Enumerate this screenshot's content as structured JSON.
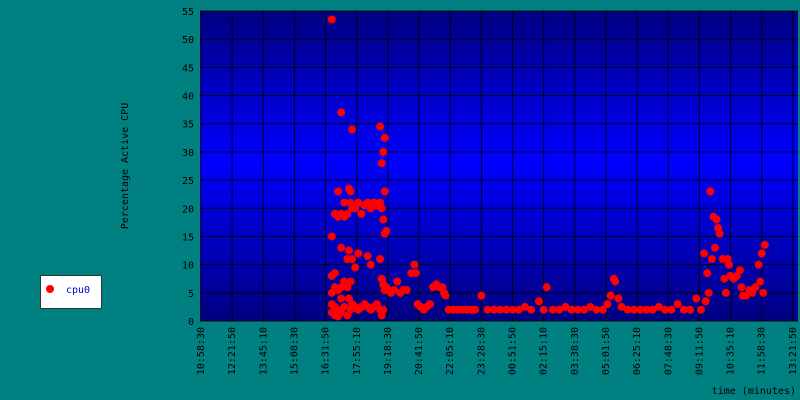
{
  "chart_data": {
    "type": "scatter",
    "title": "",
    "xlabel": "time (minutes)",
    "ylabel": "Percentage Active CPU",
    "ylim": [
      0,
      55
    ],
    "yticks": [
      0,
      5,
      10,
      15,
      20,
      25,
      30,
      35,
      40,
      45,
      50,
      55
    ],
    "xticks": [
      "10:58:30",
      "12:21:50",
      "13:45:10",
      "15:08:30",
      "16:31:50",
      "17:55:10",
      "19:18:30",
      "20:41:50",
      "22:05:10",
      "23:28:30",
      "00:51:50",
      "02:15:10",
      "03:38:30",
      "05:01:50",
      "06:25:10",
      "07:48:30",
      "09:11:50",
      "10:35:10",
      "11:58:30",
      "13:21:50"
    ],
    "grid": true,
    "legend": "left",
    "series": [
      {
        "name": "cpu0",
        "color": "#ff0000",
        "points": [
          [
            4.2,
            53.5
          ],
          [
            4.2,
            15
          ],
          [
            4.2,
            8
          ],
          [
            4.2,
            5
          ],
          [
            4.2,
            3
          ],
          [
            4.2,
            1.5
          ],
          [
            4.3,
            19
          ],
          [
            4.3,
            8.5
          ],
          [
            4.3,
            6
          ],
          [
            4.3,
            2.5
          ],
          [
            4.3,
            1
          ],
          [
            4.4,
            23
          ],
          [
            4.4,
            18.5
          ],
          [
            4.4,
            5.5
          ],
          [
            4.4,
            2
          ],
          [
            4.4,
            0.8
          ],
          [
            4.5,
            37
          ],
          [
            4.5,
            19
          ],
          [
            4.5,
            13
          ],
          [
            4.5,
            6
          ],
          [
            4.5,
            4
          ],
          [
            4.5,
            1.5
          ],
          [
            4.6,
            21
          ],
          [
            4.6,
            18.5
          ],
          [
            4.6,
            7
          ],
          [
            4.6,
            2.5
          ],
          [
            4.7,
            19
          ],
          [
            4.7,
            11
          ],
          [
            4.7,
            6
          ],
          [
            4.7,
            1
          ],
          [
            4.75,
            23.5
          ],
          [
            4.75,
            12.5
          ],
          [
            4.75,
            4
          ],
          [
            4.8,
            23
          ],
          [
            4.8,
            21
          ],
          [
            4.8,
            7
          ],
          [
            4.8,
            2
          ],
          [
            4.85,
            34
          ],
          [
            4.85,
            20
          ],
          [
            4.85,
            11
          ],
          [
            4.85,
            3
          ],
          [
            4.95,
            20
          ],
          [
            4.95,
            9.5
          ],
          [
            4.95,
            2.5
          ],
          [
            5.05,
            21
          ],
          [
            5.05,
            12
          ],
          [
            5.05,
            2
          ],
          [
            5.15,
            19
          ],
          [
            5.15,
            2.5
          ],
          [
            5.25,
            20.5
          ],
          [
            5.25,
            3
          ],
          [
            5.35,
            21
          ],
          [
            5.35,
            11.5
          ],
          [
            5.35,
            2.5
          ],
          [
            5.45,
            20
          ],
          [
            5.45,
            10
          ],
          [
            5.45,
            2
          ],
          [
            5.55,
            21
          ],
          [
            5.55,
            2.5
          ],
          [
            5.65,
            20.5
          ],
          [
            5.65,
            3
          ],
          [
            5.75,
            34.5
          ],
          [
            5.75,
            21
          ],
          [
            5.75,
            11
          ],
          [
            5.75,
            2
          ],
          [
            5.8,
            28
          ],
          [
            5.8,
            20
          ],
          [
            5.8,
            7.5
          ],
          [
            5.8,
            1
          ],
          [
            5.85,
            30
          ],
          [
            5.85,
            18
          ],
          [
            5.85,
            6.5
          ],
          [
            5.85,
            2
          ],
          [
            5.9,
            32.5
          ],
          [
            5.9,
            23
          ],
          [
            5.9,
            15.5
          ],
          [
            5.9,
            5.5
          ],
          [
            5.95,
            16
          ],
          [
            5.95,
            6
          ],
          [
            6.0,
            5.5
          ],
          [
            6.1,
            5
          ],
          [
            6.2,
            5.5
          ],
          [
            6.3,
            7
          ],
          [
            6.4,
            5
          ],
          [
            6.5,
            5.5
          ],
          [
            6.6,
            5.5
          ],
          [
            6.75,
            8.5
          ],
          [
            6.85,
            10
          ],
          [
            6.9,
            8.5
          ],
          [
            6.95,
            3
          ],
          [
            7.05,
            2.5
          ],
          [
            7.15,
            2
          ],
          [
            7.25,
            2.5
          ],
          [
            7.35,
            3
          ],
          [
            7.45,
            6
          ],
          [
            7.55,
            6.5
          ],
          [
            7.65,
            6
          ],
          [
            7.75,
            6
          ],
          [
            7.8,
            5
          ],
          [
            7.85,
            4.5
          ],
          [
            7.95,
            2
          ],
          [
            8.1,
            2
          ],
          [
            8.25,
            2
          ],
          [
            8.4,
            2
          ],
          [
            8.55,
            2
          ],
          [
            8.7,
            2
          ],
          [
            8.8,
            2
          ],
          [
            9.0,
            4.5
          ],
          [
            9.2,
            2
          ],
          [
            9.4,
            2
          ],
          [
            9.6,
            2
          ],
          [
            9.8,
            2
          ],
          [
            10.0,
            2
          ],
          [
            10.2,
            2
          ],
          [
            10.4,
            2.5
          ],
          [
            10.6,
            2
          ],
          [
            10.85,
            3.5
          ],
          [
            11.0,
            2
          ],
          [
            11.1,
            6
          ],
          [
            11.3,
            2
          ],
          [
            11.5,
            2
          ],
          [
            11.7,
            2.5
          ],
          [
            11.9,
            2
          ],
          [
            12.1,
            2
          ],
          [
            12.3,
            2
          ],
          [
            12.5,
            2.5
          ],
          [
            12.7,
            2
          ],
          [
            12.9,
            2
          ],
          [
            13.05,
            3
          ],
          [
            13.15,
            4.5
          ],
          [
            13.25,
            7.5
          ],
          [
            13.3,
            7
          ],
          [
            13.4,
            4
          ],
          [
            13.5,
            2.5
          ],
          [
            13.7,
            2
          ],
          [
            13.9,
            2
          ],
          [
            14.1,
            2
          ],
          [
            14.3,
            2
          ],
          [
            14.5,
            2
          ],
          [
            14.7,
            2.5
          ],
          [
            14.9,
            2
          ],
          [
            15.1,
            2
          ],
          [
            15.3,
            3
          ],
          [
            15.5,
            2
          ],
          [
            15.7,
            2
          ],
          [
            15.9,
            4
          ],
          [
            16.05,
            2
          ],
          [
            16.15,
            12
          ],
          [
            16.2,
            3.5
          ],
          [
            16.25,
            8.5
          ],
          [
            16.3,
            5
          ],
          [
            16.35,
            23
          ],
          [
            16.4,
            11
          ],
          [
            16.45,
            18.5
          ],
          [
            16.5,
            13
          ],
          [
            16.55,
            18
          ],
          [
            16.6,
            16.5
          ],
          [
            16.65,
            15.5
          ],
          [
            16.75,
            11
          ],
          [
            16.8,
            7.5
          ],
          [
            16.85,
            5
          ],
          [
            16.9,
            11
          ],
          [
            16.95,
            10
          ],
          [
            17.0,
            8
          ],
          [
            17.1,
            7.5
          ],
          [
            17.2,
            8
          ],
          [
            17.3,
            9
          ],
          [
            17.35,
            6
          ],
          [
            17.4,
            4.5
          ],
          [
            17.5,
            4.5
          ],
          [
            17.6,
            5.5
          ],
          [
            17.7,
            5
          ],
          [
            17.8,
            6
          ],
          [
            17.9,
            10
          ],
          [
            18.0,
            12
          ],
          [
            18.1,
            13.5
          ],
          [
            17.95,
            7
          ],
          [
            18.05,
            5
          ]
        ]
      }
    ]
  }
}
